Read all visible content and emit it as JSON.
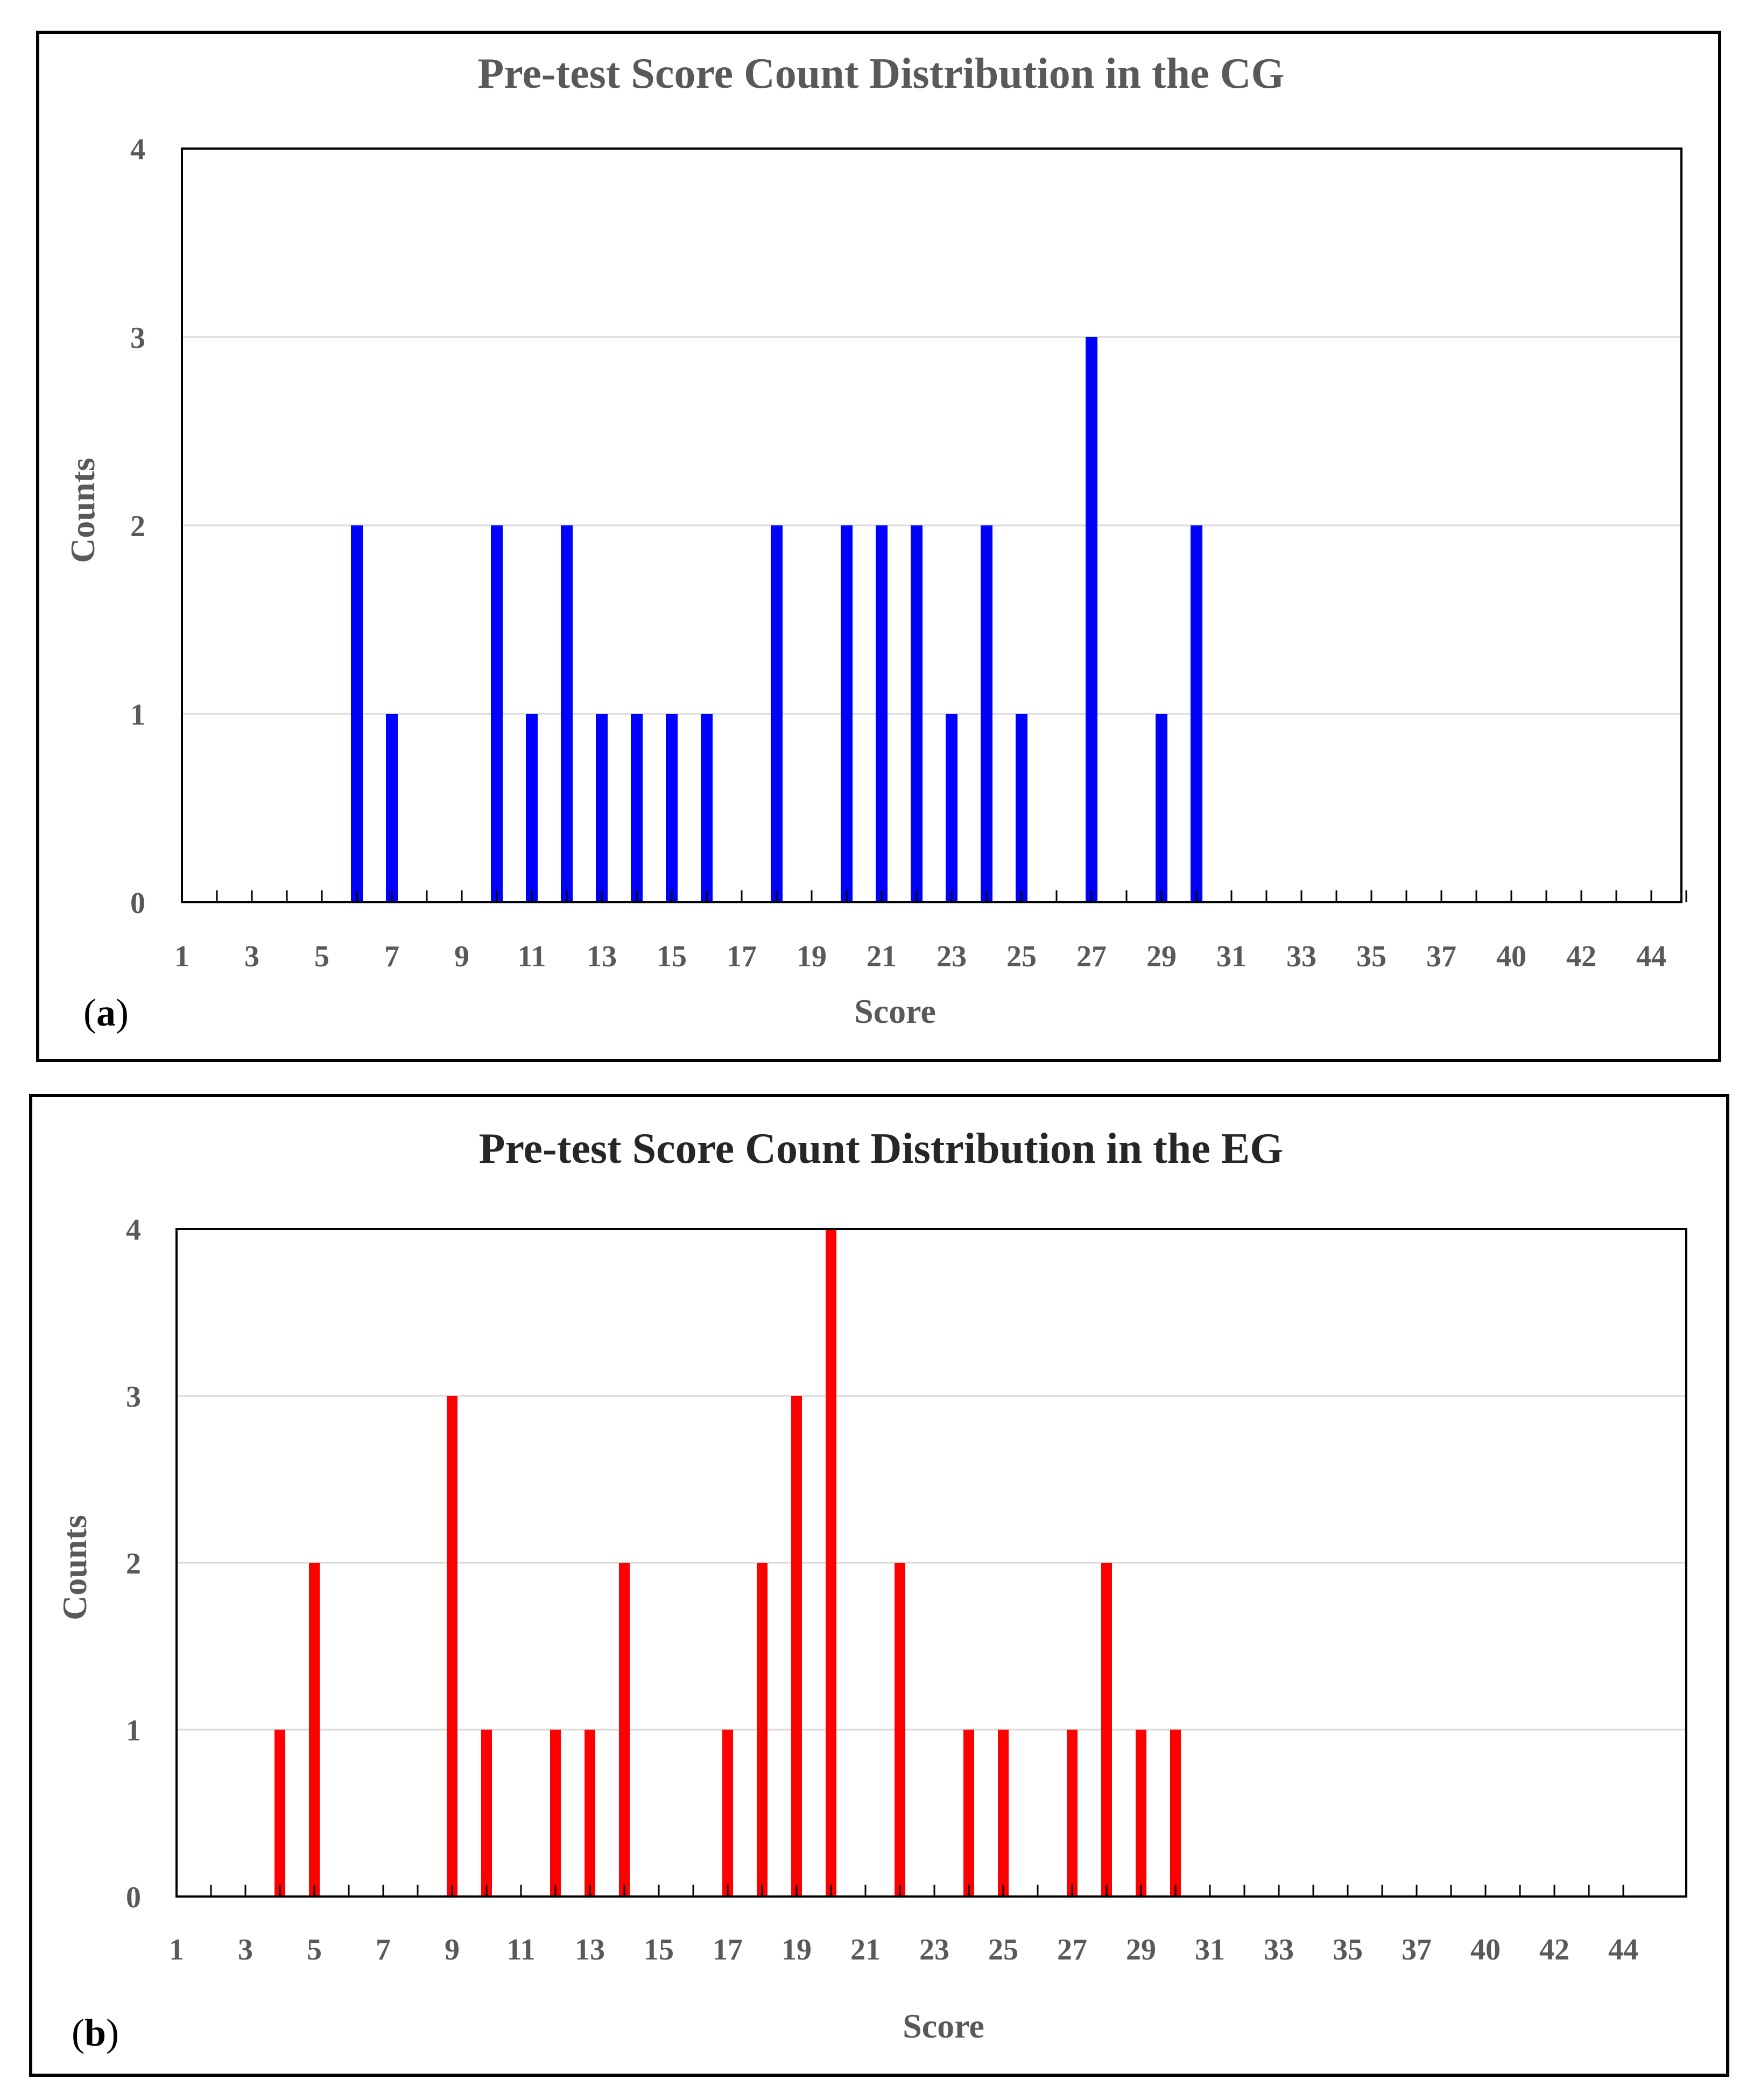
{
  "colors": {
    "cg_bar": "#0000ff",
    "eg_bar": "#ff0000",
    "grid": "#d9d9d9",
    "frame": "#000000"
  },
  "chart_data": [
    {
      "type": "bar",
      "panel": "(a)",
      "panel_letter": "a",
      "title": "Pre-test Score Count Distribution in the CG",
      "xlabel": "Score",
      "ylabel": "Counts",
      "ylim": [
        0,
        4
      ],
      "yticks": [
        0,
        1,
        2,
        3,
        4
      ],
      "grid": true,
      "categories": [
        1,
        2,
        3,
        4,
        5,
        6,
        7,
        8,
        9,
        10,
        11,
        12,
        13,
        14,
        15,
        16,
        17,
        18,
        19,
        20,
        21,
        22,
        23,
        24,
        25,
        26,
        27,
        28,
        29,
        30,
        31,
        32,
        33,
        34,
        35,
        36,
        37,
        38,
        40,
        41,
        42,
        43,
        44,
        45
      ],
      "tick_labels": [
        "1",
        "3",
        "5",
        "7",
        "9",
        "11",
        "13",
        "15",
        "17",
        "19",
        "21",
        "23",
        "25",
        "27",
        "29",
        "31",
        "33",
        "35",
        "37",
        "40",
        "42",
        "44"
      ],
      "values": [
        0,
        0,
        0,
        0,
        0,
        2,
        1,
        0,
        0,
        2,
        1,
        2,
        1,
        1,
        1,
        1,
        0,
        2,
        0,
        2,
        2,
        2,
        1,
        2,
        1,
        0,
        3,
        0,
        1,
        2,
        0,
        0,
        0,
        0,
        0,
        0,
        0,
        0,
        0,
        0,
        0,
        0,
        0,
        0
      ]
    },
    {
      "type": "bar",
      "panel": "(b)",
      "panel_letter": "b",
      "title": "Pre-test Score Count Distribution in the EG",
      "xlabel": "Score",
      "ylabel": "Counts",
      "ylim": [
        0,
        4
      ],
      "yticks": [
        0,
        1,
        2,
        3,
        4
      ],
      "grid": true,
      "categories": [
        1,
        2,
        3,
        4,
        5,
        6,
        7,
        8,
        9,
        10,
        11,
        12,
        13,
        14,
        15,
        16,
        17,
        18,
        19,
        20,
        21,
        22,
        23,
        24,
        25,
        26,
        27,
        28,
        29,
        30,
        31,
        32,
        33,
        34,
        35,
        36,
        37,
        38,
        40,
        41,
        42,
        43,
        44
      ],
      "tick_labels": [
        "1",
        "3",
        "5",
        "7",
        "9",
        "11",
        "13",
        "15",
        "17",
        "19",
        "21",
        "23",
        "25",
        "27",
        "29",
        "31",
        "33",
        "35",
        "37",
        "40",
        "42",
        "44"
      ],
      "values": [
        0,
        0,
        0,
        1,
        2,
        0,
        0,
        0,
        3,
        1,
        0,
        1,
        1,
        2,
        0,
        0,
        1,
        2,
        3,
        4,
        0,
        2,
        0,
        1,
        1,
        0,
        1,
        2,
        1,
        1,
        0,
        0,
        0,
        0,
        0,
        0,
        0,
        0,
        0,
        0,
        0,
        0,
        0
      ]
    }
  ]
}
